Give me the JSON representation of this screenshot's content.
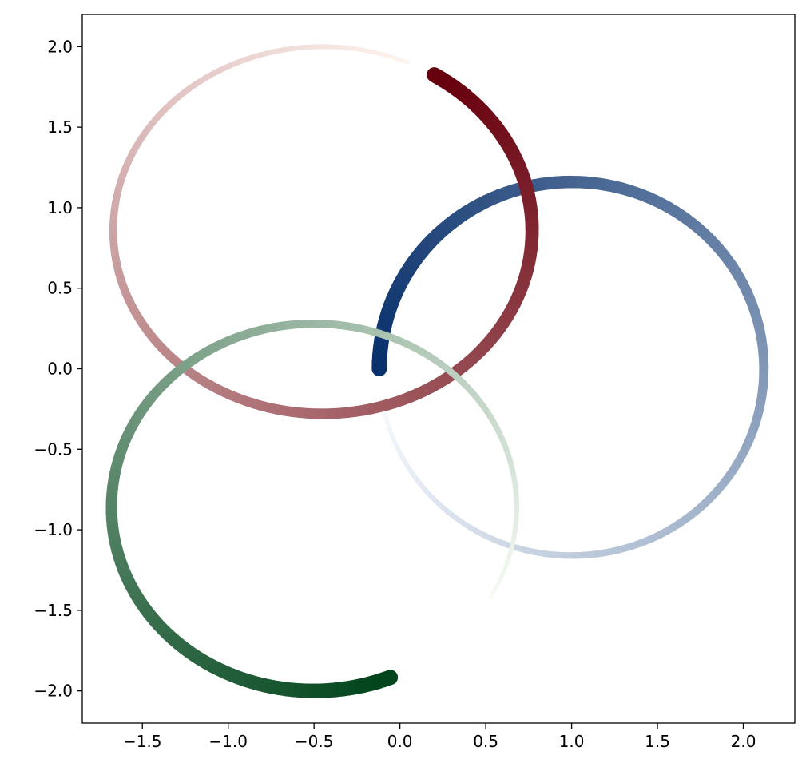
{
  "chart_data": {
    "type": "line",
    "title": "",
    "xlabel": "",
    "ylabel": "",
    "xlim": [
      -1.85,
      2.3
    ],
    "ylim": [
      -2.2,
      2.2
    ],
    "xticks": [
      -1.5,
      -1.0,
      -0.5,
      0.0,
      0.5,
      1.0,
      1.5,
      2.0
    ],
    "yticks": [
      -2.0,
      -1.5,
      -1.0,
      -0.5,
      0.0,
      0.5,
      1.0,
      1.5,
      2.0
    ],
    "xtick_labels": [
      "−1.5",
      "−1.0",
      "−0.5",
      "0.0",
      "0.5",
      "1.0",
      "1.5",
      "2.0"
    ],
    "ytick_labels": [
      "−2.0",
      "−1.5",
      "−1.0",
      "−0.5",
      "0.0",
      "0.5",
      "1.0",
      "1.5",
      "2.0"
    ],
    "grid": false,
    "legend": "none",
    "line_style": "thin-to-thick arc colored along a light-to-dark gradient",
    "series": [
      {
        "colormap": "Blues",
        "color_start": "#f7fbff",
        "color_end": "#08306b",
        "center": [
          1.0,
          0.0
        ],
        "radius_x": 1.12,
        "radius_y": 1.16,
        "start": [
          -0.1,
          -0.2
        ],
        "end": [
          -0.1,
          0.0
        ],
        "direction": "counterclockwise"
      },
      {
        "colormap": "Reds",
        "color_start": "#fff5f0",
        "color_end": "#67000d",
        "center": [
          -0.45,
          0.86
        ],
        "radius_x": 1.22,
        "radius_y": 1.14,
        "start": [
          0.05,
          1.9
        ],
        "end": [
          0.19,
          1.81
        ],
        "direction": "counterclockwise"
      },
      {
        "colormap": "Greens",
        "color_start": "#f7fcf5",
        "color_end": "#00441b",
        "center": [
          -0.5,
          -0.86
        ],
        "radius_x": 1.18,
        "radius_y": 1.14,
        "start": [
          0.58,
          -1.45
        ],
        "end": [
          -0.05,
          -1.93
        ],
        "direction": "counterclockwise"
      }
    ]
  }
}
